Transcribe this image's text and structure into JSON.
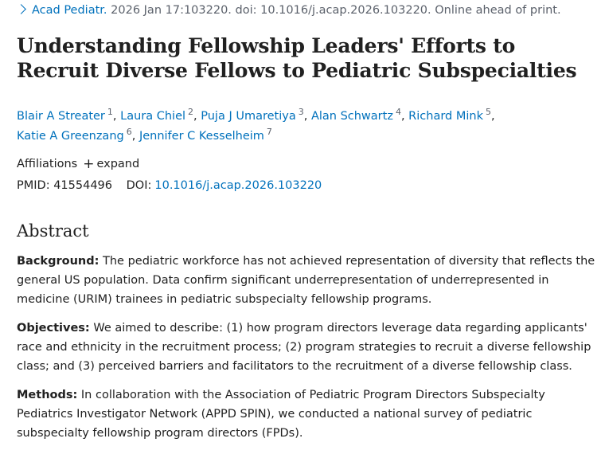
{
  "citation": {
    "journal": "Acad Pediatr.",
    "details": "2026 Jan 17:103220. doi: 10.1016/j.acap.2026.103220. Online ahead of print."
  },
  "title": "Understanding Fellowship Leaders' Efforts to Recruit Diverse Fellows to Pediatric Subspecialties",
  "authors": [
    {
      "name": "Blair A Streater",
      "num": "1"
    },
    {
      "name": "Laura Chiel",
      "num": "2"
    },
    {
      "name": "Puja J Umaretiya",
      "num": "3"
    },
    {
      "name": "Alan Schwartz",
      "num": "4"
    },
    {
      "name": "Richard Mink",
      "num": "5"
    },
    {
      "name": "Katie A Greenzang",
      "num": "6"
    },
    {
      "name": "Jennifer C Kesselheim",
      "num": "7"
    }
  ],
  "affiliations": {
    "label": "Affiliations",
    "toggle_symbol": "+",
    "toggle_label": "expand"
  },
  "ids": {
    "pmid_label": "PMID:",
    "pmid": "41554496",
    "doi_label": "DOI:",
    "doi": "10.1016/j.acap.2026.103220"
  },
  "abstract": {
    "heading": "Abstract",
    "sections": [
      {
        "label": "Background:",
        "text": "The pediatric workforce has not achieved representation of diversity that reflects the general US population. Data confirm significant underrepresentation of underrepresented in medicine (URIM) trainees in pediatric subspecialty fellowship programs."
      },
      {
        "label": "Objectives:",
        "text": "We aimed to describe: (1) how program directors leverage data regarding applicants' race and ethnicity in the recruitment process; (2) program strategies to recruit a diverse fellowship class; and (3) perceived barriers and facilitators to the recruitment of a diverse fellowship class."
      },
      {
        "label": "Methods:",
        "text": "In collaboration with the Association of Pediatric Program Directors Subspecialty Pediatrics Investigator Network (APPD SPIN), we conducted a national survey of pediatric subspecialty fellowship program directors (FPDs)."
      }
    ]
  },
  "colors": {
    "link": "#0071bc",
    "text": "#212121",
    "muted": "#5b616b"
  }
}
